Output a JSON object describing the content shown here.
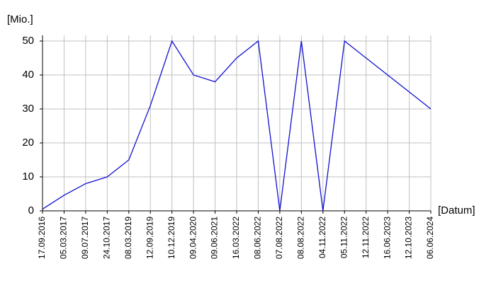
{
  "chart_data": {
    "type": "line",
    "y_label": "[Mio.]",
    "x_label": "[Datum]",
    "categories": [
      "17.09.2016",
      "05.03.2017",
      "09.07.2017",
      "24.10.2017",
      "08.03.2019",
      "12.09.2019",
      "10.12.2019",
      "09.04.2020",
      "09.06.2021",
      "16.03.2022",
      "08.06.2022",
      "07.08.2022",
      "08.08.2022",
      "04.11.2022",
      "05.11.2022",
      "12.11.2022",
      "16.06.2023",
      "12.10.2023",
      "06.06.2024"
    ],
    "values": [
      0.5,
      4.6,
      8,
      10,
      15,
      31,
      50,
      40,
      38,
      45,
      50,
      0,
      50,
      0,
      50,
      45,
      40,
      35,
      30
    ],
    "color": "#1010d0",
    "ylim": [
      0,
      50
    ],
    "yticks": [
      0,
      10,
      20,
      30,
      40,
      50
    ],
    "grid": true
  }
}
